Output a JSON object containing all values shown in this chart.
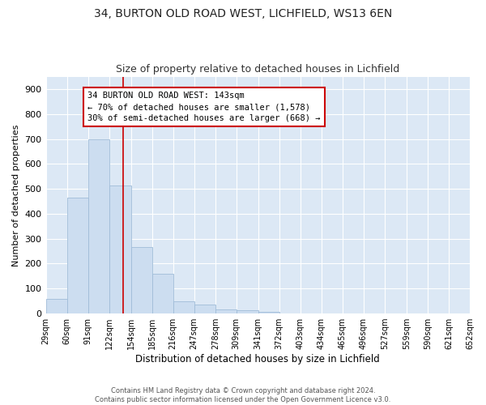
{
  "title1": "34, BURTON OLD ROAD WEST, LICHFIELD, WS13 6EN",
  "title2": "Size of property relative to detached houses in Lichfield",
  "xlabel": "Distribution of detached houses by size in Lichfield",
  "ylabel": "Number of detached properties",
  "bar_heights": [
    60,
    465,
    700,
    515,
    265,
    160,
    48,
    35,
    18,
    13,
    8,
    0,
    0,
    0,
    0,
    0,
    0,
    0,
    0,
    0
  ],
  "bin_edges": [
    29,
    60,
    91,
    122,
    154,
    185,
    216,
    247,
    278,
    309,
    341,
    372,
    403,
    434,
    465,
    496,
    527,
    559,
    590,
    621,
    652
  ],
  "xtick_labels": [
    "29sqm",
    "60sqm",
    "91sqm",
    "122sqm",
    "154sqm",
    "185sqm",
    "216sqm",
    "247sqm",
    "278sqm",
    "309sqm",
    "341sqm",
    "372sqm",
    "403sqm",
    "434sqm",
    "465sqm",
    "496sqm",
    "527sqm",
    "559sqm",
    "590sqm",
    "621sqm",
    "652sqm"
  ],
  "bar_color": "#ccddf0",
  "bar_edge_color": "#a0bcd8",
  "red_line_x": 143,
  "ylim": [
    0,
    950
  ],
  "yticks": [
    0,
    100,
    200,
    300,
    400,
    500,
    600,
    700,
    800,
    900
  ],
  "annotation_title": "34 BURTON OLD ROAD WEST: 143sqm",
  "annotation_line1": "← 70% of detached houses are smaller (1,578)",
  "annotation_line2": "30% of semi-detached houses are larger (668) →",
  "annotation_box_color": "#ffffff",
  "annotation_box_edge_color": "#cc0000",
  "plot_bg_color": "#dce8f5",
  "fig_bg_color": "#ffffff",
  "grid_color": "#ffffff",
  "footer1": "Contains HM Land Registry data © Crown copyright and database right 2024.",
  "footer2": "Contains public sector information licensed under the Open Government Licence v3.0."
}
